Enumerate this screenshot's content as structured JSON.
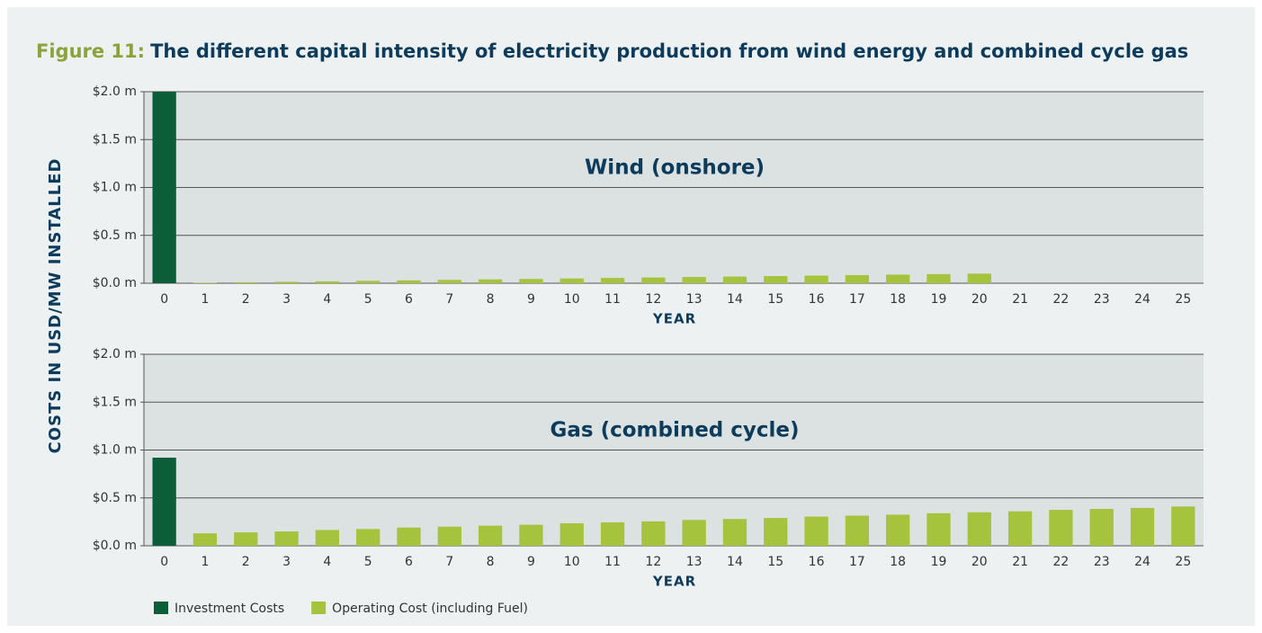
{
  "figure": {
    "label": "Figure 11:",
    "title": "The different capital intensity of electricity production from wind energy and combined cycle gas",
    "y_label": "COSTS IN USD/MW INSTALLED"
  },
  "chart_data": [
    {
      "type": "bar",
      "title": "Wind (onshore)",
      "x_label": "YEAR",
      "categories": [
        "0",
        "1",
        "2",
        "3",
        "4",
        "5",
        "6",
        "7",
        "8",
        "9",
        "10",
        "11",
        "12",
        "13",
        "14",
        "15",
        "16",
        "17",
        "18",
        "19",
        "20",
        "21",
        "22",
        "23",
        "24",
        "25"
      ],
      "series": [
        {
          "color": "#0b5e37",
          "values": [
            2.0,
            null,
            null,
            null,
            null,
            null,
            null,
            null,
            null,
            null,
            null,
            null,
            null,
            null,
            null,
            null,
            null,
            null,
            null,
            null,
            null,
            null,
            null,
            null,
            null,
            null
          ]
        },
        {
          "color": "#a5c33c",
          "values": [
            null,
            0.005,
            0.01,
            0.015,
            0.02,
            0.025,
            0.03,
            0.035,
            0.04,
            0.045,
            0.05,
            0.055,
            0.06,
            0.065,
            0.07,
            0.075,
            0.08,
            0.085,
            0.09,
            0.095,
            0.1,
            null,
            null,
            null,
            null,
            null
          ]
        }
      ],
      "ylim": [
        0,
        2.0
      ],
      "yticks": [
        {
          "value": 0,
          "label": "$0.0 m"
        },
        {
          "value": 0.5,
          "label": "$0.5 m"
        },
        {
          "value": 1.0,
          "label": "$1.0 m"
        },
        {
          "value": 1.5,
          "label": "$1.5 m"
        },
        {
          "value": 2.0,
          "label": "$2.0 m"
        }
      ],
      "grid": true
    },
    {
      "type": "bar",
      "title": "Gas (combined cycle)",
      "x_label": "YEAR",
      "categories": [
        "0",
        "1",
        "2",
        "3",
        "4",
        "5",
        "6",
        "7",
        "8",
        "9",
        "10",
        "11",
        "12",
        "13",
        "14",
        "15",
        "16",
        "17",
        "18",
        "19",
        "20",
        "21",
        "22",
        "23",
        "24",
        "25"
      ],
      "series": [
        {
          "name": "Investment Costs",
          "color": "#0b5e37",
          "values": [
            0.92,
            null,
            null,
            null,
            null,
            null,
            null,
            null,
            null,
            null,
            null,
            null,
            null,
            null,
            null,
            null,
            null,
            null,
            null,
            null,
            null,
            null,
            null,
            null,
            null,
            null
          ]
        },
        {
          "name": "Operating Cost (including Fuel)",
          "color": "#a5c33c",
          "values": [
            null,
            0.13,
            0.14,
            0.15,
            0.165,
            0.175,
            0.19,
            0.2,
            0.21,
            0.22,
            0.235,
            0.245,
            0.255,
            0.27,
            0.28,
            0.29,
            0.305,
            0.315,
            0.325,
            0.34,
            0.35,
            0.36,
            0.375,
            0.385,
            0.395,
            0.41
          ]
        }
      ],
      "ylim": [
        0,
        2.0
      ],
      "yticks": [
        {
          "value": 0,
          "label": "$0.0 m"
        },
        {
          "value": 0.5,
          "label": "$0.5 m"
        },
        {
          "value": 1.0,
          "label": "$1.0 m"
        },
        {
          "value": 1.5,
          "label": "$1.5 m"
        },
        {
          "value": 2.0,
          "label": "$2.0 m"
        }
      ],
      "grid": true
    }
  ]
}
